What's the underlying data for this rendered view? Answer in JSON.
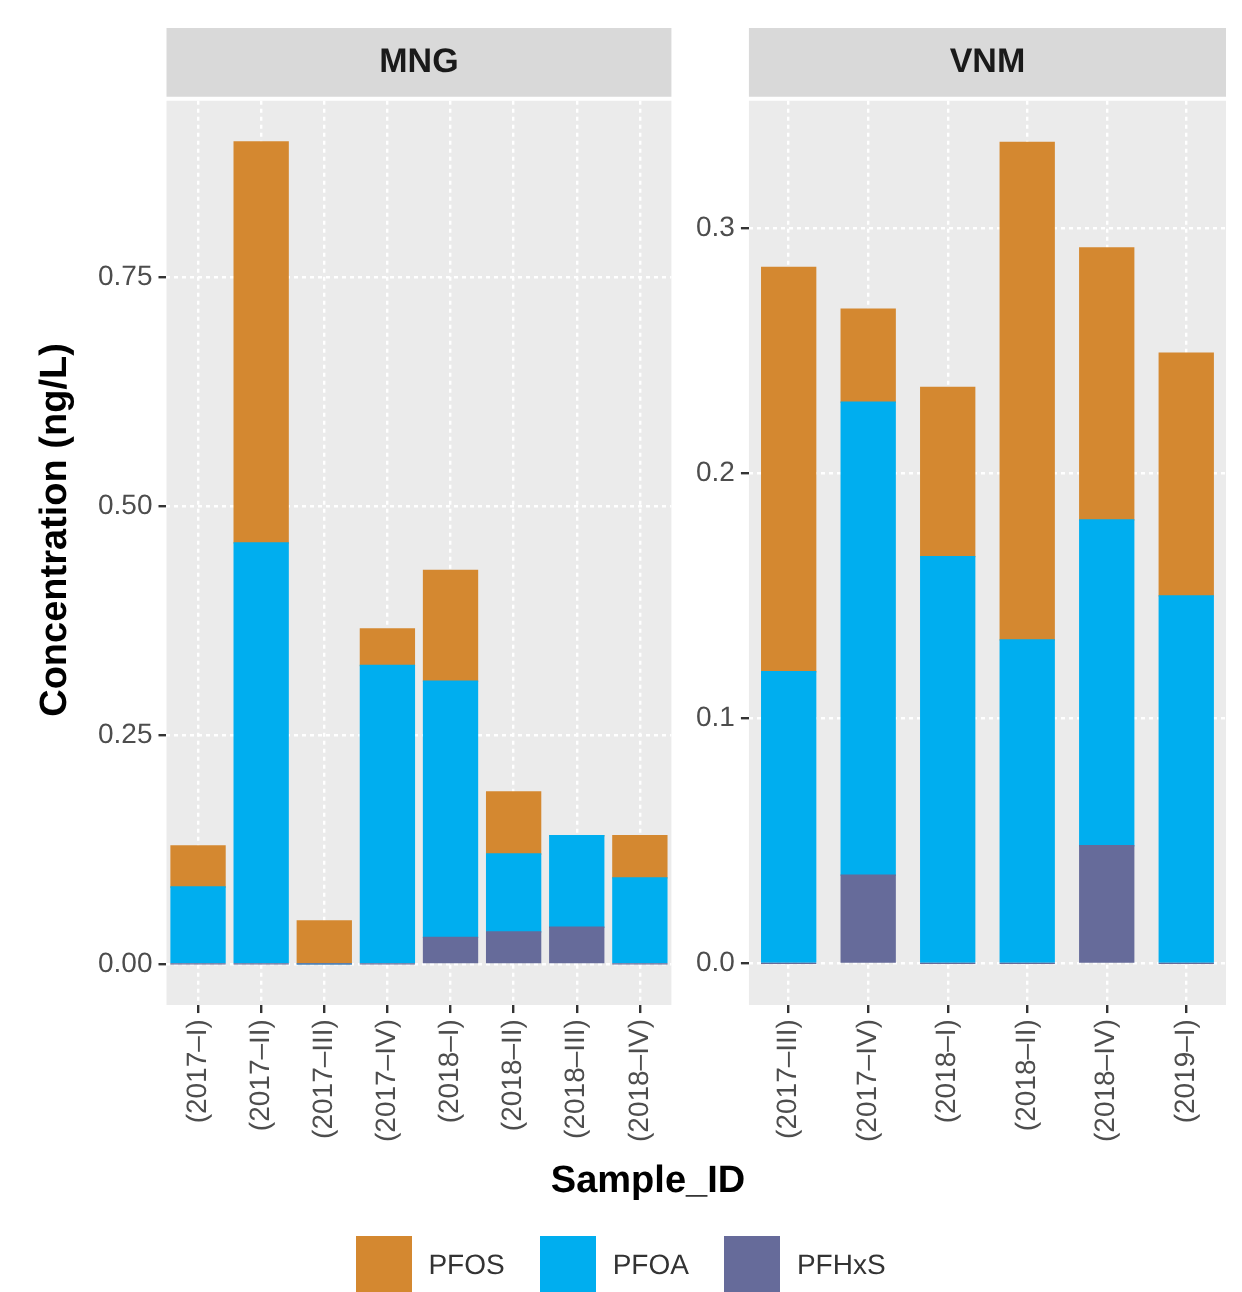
{
  "chart_data": [
    {
      "type": "bar",
      "title": "MNG",
      "xlabel": "Sample_ID",
      "ylabel": "Concentration (ng/L)",
      "stacked": true,
      "grid": true,
      "legend": "bottom",
      "categories": [
        "(2017–I)",
        "(2017–II)",
        "(2017–III)",
        "(2017–IV)",
        "(2018–I)",
        "(2018–II)",
        "(2018–III)",
        "(2018–IV)"
      ],
      "ylim": [
        -0.045,
        0.943
      ],
      "yticks": [
        {
          "value": 0,
          "label": "0.00"
        },
        {
          "value": 0.25,
          "label": "0.25"
        },
        {
          "value": 0.5,
          "label": "0.50"
        },
        {
          "value": 0.75,
          "label": "0.75"
        }
      ],
      "series": [
        {
          "name": "PFHxS",
          "color": "#666b9a",
          "values": [
            0,
            0,
            0,
            0,
            0.029,
            0.035,
            0.04,
            0
          ]
        },
        {
          "name": "PFOA",
          "color": "#00aeef",
          "values": [
            0.084,
            0.46,
            0,
            0.326,
            0.28,
            0.085,
            0.1,
            0.094
          ]
        },
        {
          "name": "PFOS",
          "color": "#d48830",
          "values": [
            0.045,
            0.438,
            0.047,
            0.04,
            0.121,
            0.068,
            0,
            0.046
          ]
        }
      ]
    },
    {
      "type": "bar",
      "title": "VNM",
      "stacked": true,
      "grid": true,
      "categories": [
        "(2017–III)",
        "(2017–IV)",
        "(2018–I)",
        "(2018–II)",
        "(2018–IV)",
        "(2019–I)"
      ],
      "ylim": [
        -0.017,
        0.352
      ],
      "yticks": [
        {
          "value": 0,
          "label": "0.0"
        },
        {
          "value": 0.1,
          "label": "0.1"
        },
        {
          "value": 0.2,
          "label": "0.2"
        },
        {
          "value": 0.3,
          "label": "0.3"
        }
      ],
      "series": [
        {
          "color": "#666b9a",
          "values": [
            0,
            0.036,
            0,
            0,
            0.048,
            0
          ]
        },
        {
          "color": "#00aeef",
          "values": [
            0.119,
            0.193,
            0.166,
            0.132,
            0.133,
            0.15
          ]
        },
        {
          "color": "#d48830",
          "values": [
            0.165,
            0.038,
            0.069,
            0.203,
            0.111,
            0.099
          ]
        }
      ]
    }
  ]
}
